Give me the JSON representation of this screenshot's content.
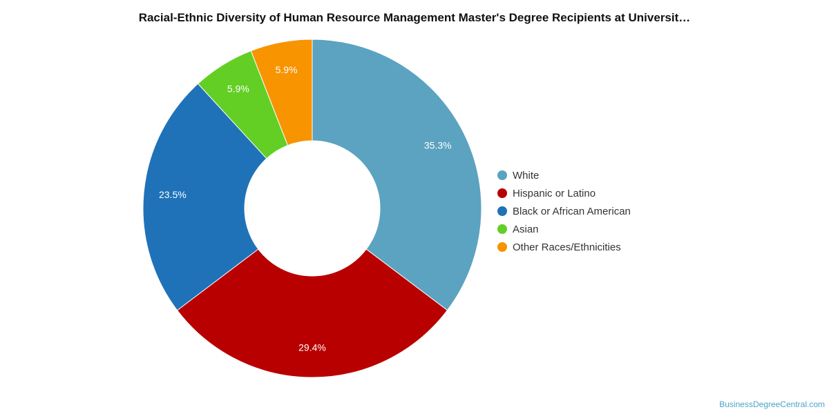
{
  "chart_data": {
    "type": "pie",
    "title": "Racial-Ethnic Diversity of Human Resource Management Master's Degree Recipients at Universit…",
    "categories": [
      "White",
      "Hispanic or Latino",
      "Black or African American",
      "Asian",
      "Other Races/Ethnicities"
    ],
    "values": [
      35.3,
      29.4,
      23.5,
      5.9,
      5.9
    ],
    "value_labels": [
      "35.3%",
      "29.4%",
      "23.5%",
      "5.9%",
      "5.9%"
    ],
    "colors": [
      "#5ba3c0",
      "#b80000",
      "#1f72b8",
      "#63cf25",
      "#f79400"
    ],
    "donut": true,
    "legend_position": "right"
  },
  "footer": {
    "source": "BusinessDegreeCentral.com"
  }
}
